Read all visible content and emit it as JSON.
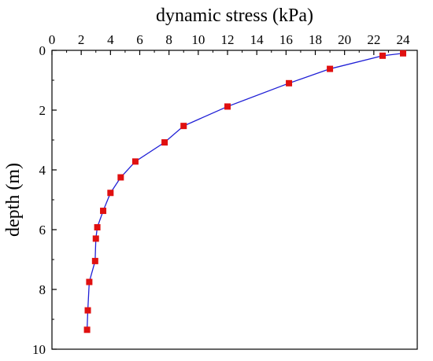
{
  "chart_data": {
    "type": "line",
    "xlabel": "dynamic stress (kPa)",
    "ylabel": "depth (m)",
    "x_axis_position": "top",
    "y_axis_inverted": true,
    "xlim": [
      0,
      25
    ],
    "ylim": [
      0,
      10
    ],
    "xticks": [
      0,
      2,
      4,
      6,
      8,
      10,
      12,
      14,
      16,
      18,
      20,
      22,
      24
    ],
    "yticks": [
      0,
      2,
      4,
      6,
      8,
      10
    ],
    "grid": false,
    "legend": "none",
    "series": [
      {
        "line_color": "#1f1fd6",
        "marker": "square",
        "marker_color": "#e01010",
        "points": [
          {
            "x": 24.0,
            "y": 0.1
          },
          {
            "x": 22.6,
            "y": 0.18
          },
          {
            "x": 19.0,
            "y": 0.62
          },
          {
            "x": 16.2,
            "y": 1.1
          },
          {
            "x": 12.0,
            "y": 1.88
          },
          {
            "x": 9.0,
            "y": 2.53
          },
          {
            "x": 7.7,
            "y": 3.08
          },
          {
            "x": 5.7,
            "y": 3.72
          },
          {
            "x": 4.7,
            "y": 4.25
          },
          {
            "x": 4.0,
            "y": 4.77
          },
          {
            "x": 3.5,
            "y": 5.37
          },
          {
            "x": 3.1,
            "y": 5.92
          },
          {
            "x": 3.0,
            "y": 6.3
          },
          {
            "x": 2.95,
            "y": 7.05
          },
          {
            "x": 2.55,
            "y": 7.75
          },
          {
            "x": 2.45,
            "y": 8.7
          },
          {
            "x": 2.4,
            "y": 9.35
          }
        ]
      }
    ]
  }
}
